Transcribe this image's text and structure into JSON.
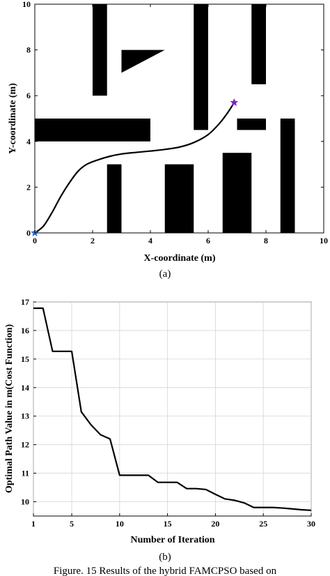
{
  "figure_caption": "Figure. 15 Results of the hybrid FAMCPSO based on",
  "chart_data": [
    {
      "type": "scatter",
      "subcaption": "(a)",
      "xlabel": "X-coordinate (m)",
      "ylabel": "Y-coordinate (m)",
      "xlim": [
        0,
        10
      ],
      "ylim": [
        0,
        10
      ],
      "xticks": [
        0,
        2,
        4,
        6,
        8,
        10
      ],
      "yticks": [
        0,
        2,
        4,
        6,
        8,
        10
      ],
      "obstacles": [
        {
          "type": "rect",
          "x0": 2.0,
          "x1": 2.5,
          "y0": 6.0,
          "y1": 10.0
        },
        {
          "type": "rect",
          "x0": 5.5,
          "x1": 6.0,
          "y0": 4.5,
          "y1": 10.0
        },
        {
          "type": "rect",
          "x0": 7.5,
          "x1": 8.0,
          "y0": 6.5,
          "y1": 10.0
        },
        {
          "type": "rect",
          "x0": 0.0,
          "x1": 4.0,
          "y0": 4.0,
          "y1": 5.0
        },
        {
          "type": "rect",
          "x0": 7.0,
          "x1": 8.0,
          "y0": 4.5,
          "y1": 5.0
        },
        {
          "type": "rect",
          "x0": 8.5,
          "x1": 9.0,
          "y0": 0.0,
          "y1": 5.0
        },
        {
          "type": "rect",
          "x0": 2.5,
          "x1": 3.0,
          "y0": 0.0,
          "y1": 3.0
        },
        {
          "type": "rect",
          "x0": 4.5,
          "x1": 5.5,
          "y0": 0.0,
          "y1": 3.0
        },
        {
          "type": "rect",
          "x0": 6.5,
          "x1": 7.5,
          "y0": 0.0,
          "y1": 3.5
        },
        {
          "type": "triangle",
          "points": [
            [
              3.0,
              8.0
            ],
            [
              4.5,
              8.0
            ],
            [
              3.0,
              7.0
            ]
          ]
        }
      ],
      "path": [
        [
          0.0,
          0.0
        ],
        [
          0.3,
          0.3
        ],
        [
          0.6,
          0.9
        ],
        [
          0.9,
          1.6
        ],
        [
          1.2,
          2.2
        ],
        [
          1.5,
          2.7
        ],
        [
          1.8,
          3.0
        ],
        [
          2.2,
          3.2
        ],
        [
          2.6,
          3.35
        ],
        [
          3.0,
          3.45
        ],
        [
          3.5,
          3.52
        ],
        [
          4.0,
          3.58
        ],
        [
          4.5,
          3.65
        ],
        [
          5.0,
          3.75
        ],
        [
          5.5,
          3.95
        ],
        [
          6.0,
          4.3
        ],
        [
          6.4,
          4.8
        ],
        [
          6.7,
          5.3
        ],
        [
          6.9,
          5.7
        ]
      ],
      "start": [
        0.0,
        0.0
      ],
      "goal": [
        6.9,
        5.7
      ],
      "start_color": "#2f6fd8",
      "goal_color": "#7b22c8"
    },
    {
      "type": "line",
      "subcaption": "(b)",
      "xlabel": "Number of Iteration",
      "ylabel": "Optimal Path Value in m(Cost Function)",
      "xlim": [
        1,
        30
      ],
      "ylim": [
        9.5,
        17
      ],
      "xticks": [
        1,
        5,
        10,
        15,
        20,
        25,
        30
      ],
      "yticks": [
        10,
        11,
        12,
        13,
        14,
        15,
        16,
        17
      ],
      "grid": true,
      "series": [
        {
          "x": [
            1,
            2,
            3,
            4,
            5,
            6,
            7,
            8,
            9,
            10,
            11,
            12,
            13,
            14,
            15,
            16,
            17,
            18,
            19,
            20,
            21,
            22,
            23,
            24,
            25,
            26,
            27,
            28,
            29,
            30
          ],
          "y": [
            16.78,
            16.78,
            15.27,
            15.27,
            15.27,
            13.15,
            12.7,
            12.35,
            12.2,
            10.93,
            10.93,
            10.93,
            10.93,
            10.68,
            10.68,
            10.68,
            10.46,
            10.46,
            10.43,
            10.26,
            10.1,
            10.05,
            9.96,
            9.8,
            9.8,
            9.8,
            9.78,
            9.75,
            9.72,
            9.7
          ]
        }
      ]
    }
  ]
}
